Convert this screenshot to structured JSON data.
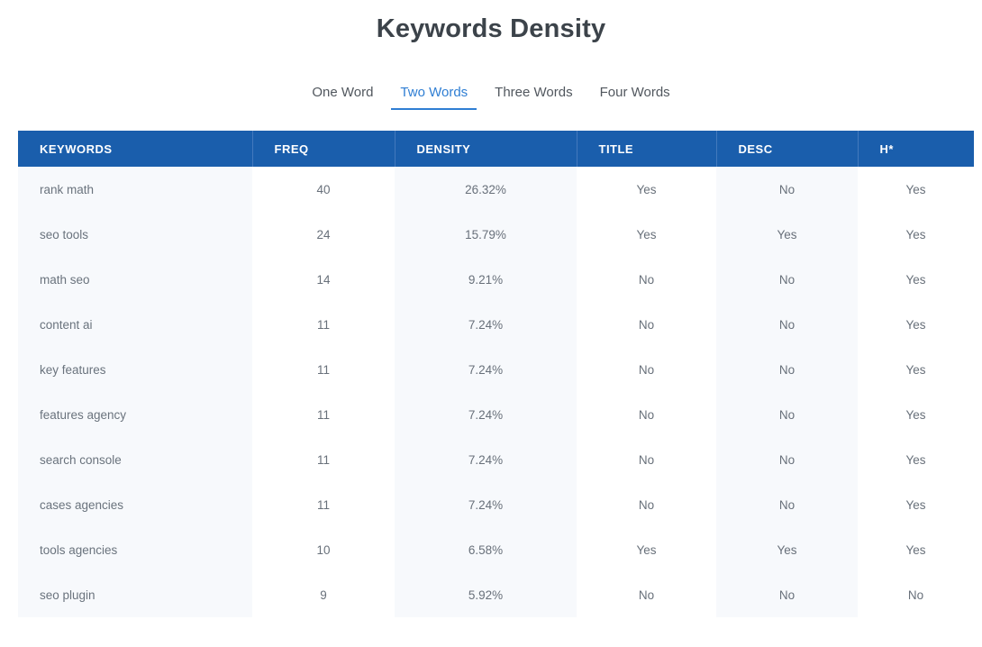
{
  "page": {
    "title": "Keywords Density"
  },
  "colors": {
    "header_bg": "#1A5EAC",
    "header_divider": "#4379BD",
    "tab_active": "#2F7ED3",
    "tab_inactive": "#51575E",
    "column_stripe": "#F7F9FC",
    "body_text": "#68707A",
    "title_text": "#3C434A"
  },
  "tabs": {
    "items": [
      {
        "label": "One Word",
        "active": false
      },
      {
        "label": "Two Words",
        "active": true
      },
      {
        "label": "Three Words",
        "active": false
      },
      {
        "label": "Four Words",
        "active": false
      }
    ]
  },
  "table": {
    "columns": [
      {
        "key": "keyword",
        "label": "KEYWORDS"
      },
      {
        "key": "freq",
        "label": "FREQ"
      },
      {
        "key": "density",
        "label": "DENSITY"
      },
      {
        "key": "title",
        "label": "TITLE"
      },
      {
        "key": "desc",
        "label": "DESC"
      },
      {
        "key": "h",
        "label": "H*"
      }
    ],
    "rows": [
      {
        "keyword": "rank math",
        "freq": "40",
        "density": "26.32%",
        "title": "Yes",
        "desc": "No",
        "h": "Yes"
      },
      {
        "keyword": "seo tools",
        "freq": "24",
        "density": "15.79%",
        "title": "Yes",
        "desc": "Yes",
        "h": "Yes"
      },
      {
        "keyword": "math seo",
        "freq": "14",
        "density": "9.21%",
        "title": "No",
        "desc": "No",
        "h": "Yes"
      },
      {
        "keyword": "content ai",
        "freq": "11",
        "density": "7.24%",
        "title": "No",
        "desc": "No",
        "h": "Yes"
      },
      {
        "keyword": "key features",
        "freq": "11",
        "density": "7.24%",
        "title": "No",
        "desc": "No",
        "h": "Yes"
      },
      {
        "keyword": "features agency",
        "freq": "11",
        "density": "7.24%",
        "title": "No",
        "desc": "No",
        "h": "Yes"
      },
      {
        "keyword": "search console",
        "freq": "11",
        "density": "7.24%",
        "title": "No",
        "desc": "No",
        "h": "Yes"
      },
      {
        "keyword": "cases agencies",
        "freq": "11",
        "density": "7.24%",
        "title": "No",
        "desc": "No",
        "h": "Yes"
      },
      {
        "keyword": "tools agencies",
        "freq": "10",
        "density": "6.58%",
        "title": "Yes",
        "desc": "Yes",
        "h": "Yes"
      },
      {
        "keyword": "seo plugin",
        "freq": "9",
        "density": "5.92%",
        "title": "No",
        "desc": "No",
        "h": "No"
      }
    ]
  }
}
